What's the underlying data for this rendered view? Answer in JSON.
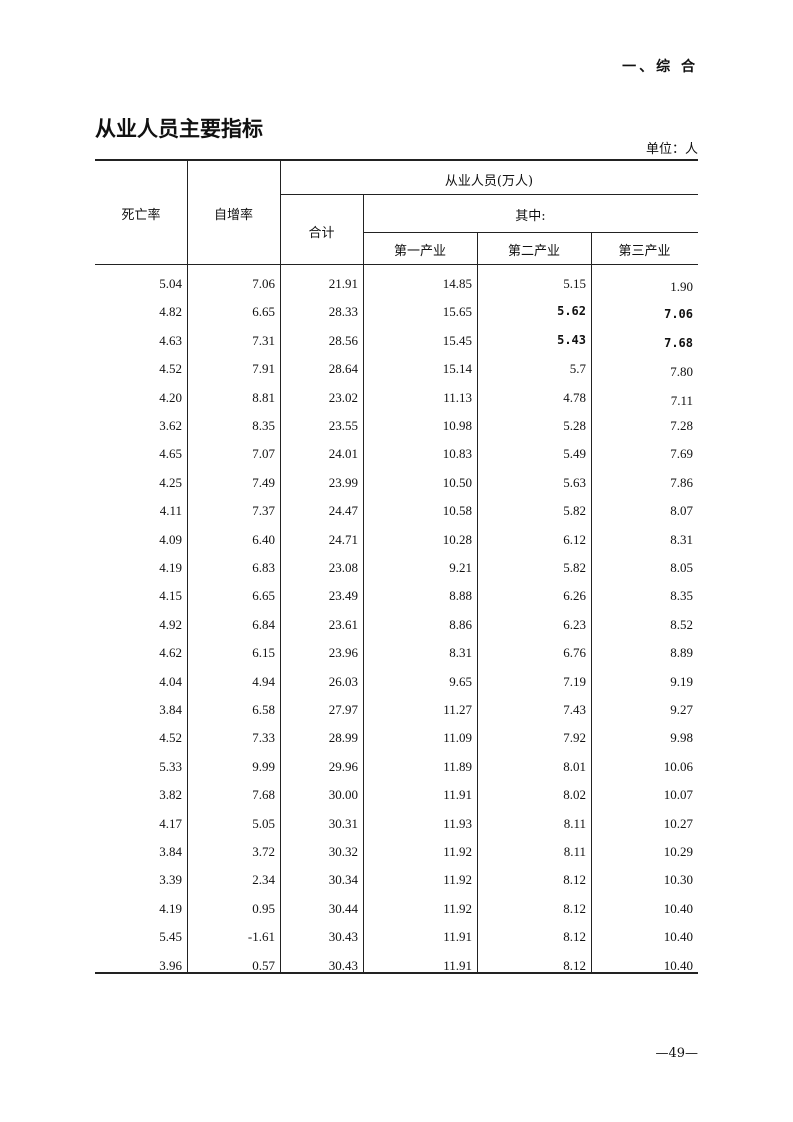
{
  "header": {
    "section": "一、综 合"
  },
  "title": "从业人员主要指标",
  "unit": "单位：人",
  "table": {
    "headers": {
      "death_rate": "死亡率",
      "natural_growth": "自增率",
      "employed_group": "从业人员(万人)",
      "total": "合计",
      "of_which": "其中:",
      "primary": "第一产业",
      "secondary": "第二产业",
      "tertiary": "第三产业"
    },
    "rows": [
      [
        "5.04",
        "7.06",
        "21.91",
        "14.85",
        "5.15",
        "1.90"
      ],
      [
        "4.82",
        "6.65",
        "28.33",
        "15.65",
        "5.62",
        "7.06"
      ],
      [
        "4.63",
        "7.31",
        "28.56",
        "15.45",
        "5.43",
        "7.68"
      ],
      [
        "4.52",
        "7.91",
        "28.64",
        "15.14",
        "5.7",
        "7.80"
      ],
      [
        "4.20",
        "8.81",
        "23.02",
        "11.13",
        "4.78",
        "7.11"
      ],
      [
        "3.62",
        "8.35",
        "23.55",
        "10.98",
        "5.28",
        "7.28"
      ],
      [
        "4.65",
        "7.07",
        "24.01",
        "10.83",
        "5.49",
        "7.69"
      ],
      [
        "4.25",
        "7.49",
        "23.99",
        "10.50",
        "5.63",
        "7.86"
      ],
      [
        "4.11",
        "7.37",
        "24.47",
        "10.58",
        "5.82",
        "8.07"
      ],
      [
        "4.09",
        "6.40",
        "24.71",
        "10.28",
        "6.12",
        "8.31"
      ],
      [
        "4.19",
        "6.83",
        "23.08",
        "9.21",
        "5.82",
        "8.05"
      ],
      [
        "4.15",
        "6.65",
        "23.49",
        "8.88",
        "6.26",
        "8.35"
      ],
      [
        "4.92",
        "6.84",
        "23.61",
        "8.86",
        "6.23",
        "8.52"
      ],
      [
        "4.62",
        "6.15",
        "23.96",
        "8.31",
        "6.76",
        "8.89"
      ],
      [
        "4.04",
        "4.94",
        "26.03",
        "9.65",
        "7.19",
        "9.19"
      ],
      [
        "3.84",
        "6.58",
        "27.97",
        "11.27",
        "7.43",
        "9.27"
      ],
      [
        "4.52",
        "7.33",
        "28.99",
        "11.09",
        "7.92",
        "9.98"
      ],
      [
        "5.33",
        "9.99",
        "29.96",
        "11.89",
        "8.01",
        "10.06"
      ],
      [
        "3.82",
        "7.68",
        "30.00",
        "11.91",
        "8.02",
        "10.07"
      ],
      [
        "4.17",
        "5.05",
        "30.31",
        "11.93",
        "8.11",
        "10.27"
      ],
      [
        "3.84",
        "3.72",
        "30.32",
        "11.92",
        "8.11",
        "10.29"
      ],
      [
        "3.39",
        "2.34",
        "30.34",
        "11.92",
        "8.12",
        "10.30"
      ],
      [
        "4.19",
        "0.95",
        "30.44",
        "11.92",
        "8.12",
        "10.40"
      ],
      [
        "5.45",
        "-1.61",
        "30.43",
        "11.91",
        "8.12",
        "10.40"
      ],
      [
        "3.96",
        "0.57",
        "30.43",
        "11.91",
        "8.12",
        "10.40"
      ]
    ],
    "bold_cells": [
      [
        1,
        4
      ],
      [
        1,
        5
      ],
      [
        2,
        4
      ],
      [
        2,
        5
      ]
    ]
  },
  "page_number": "—49—"
}
